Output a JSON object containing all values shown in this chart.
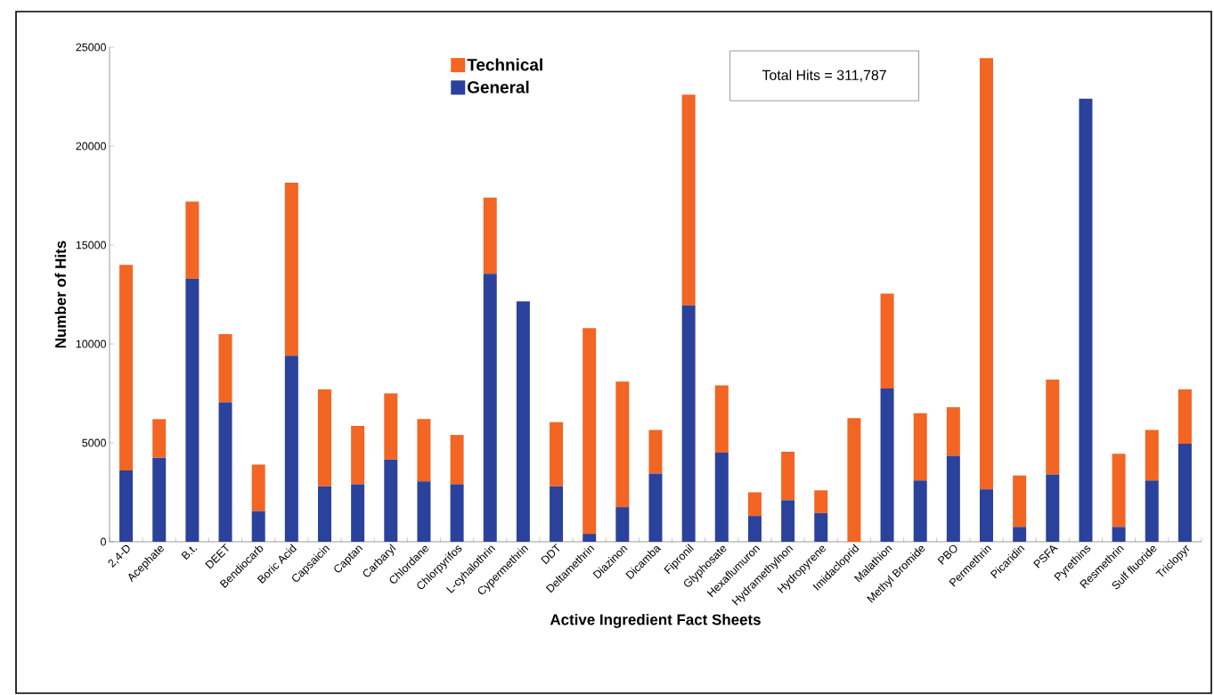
{
  "chart_data": {
    "type": "bar",
    "stacked": true,
    "xlabel": "Active Ingredient Fact Sheets",
    "ylabel": "Number of Hits",
    "categories": [
      "2,4-D",
      "Acephate",
      "B.t.",
      "DEET",
      "Bendiocarb",
      "Boric Acid",
      "Capsaicin",
      "Captan",
      "Carbaryl",
      "Chlordane",
      "Chlorpyrifos",
      "L-cyhalothrin",
      "Cypermethrin",
      "DDT",
      "Deltamethrin",
      "Diazinon",
      "Dicamba",
      "Fipronil",
      "Glyphosate",
      "Hexaflumuron",
      "Hydramethylnon",
      "Hydropyrene",
      "Imidacloprid",
      "Malathion",
      "Methyl Bromide",
      "PBO",
      "Permethrin",
      "Picaridin",
      "PSFA",
      "Pyrethins",
      "Resmethrin",
      "Sulf fluoride",
      "Triclopyr"
    ],
    "series": [
      {
        "name": "General",
        "color": "#2a429b",
        "values": [
          3600,
          4250,
          13300,
          7050,
          1550,
          9400,
          2800,
          2900,
          4150,
          3050,
          2900,
          13550,
          12150,
          2800,
          400,
          1750,
          3450,
          11950,
          4500,
          1300,
          2100,
          1450,
          0,
          7750,
          3100,
          4350,
          2650,
          750,
          3400,
          22400,
          750,
          3100,
          4950
        ]
      },
      {
        "name": "Technical",
        "color": "#f26522",
        "values": [
          10400,
          1950,
          3900,
          3450,
          2350,
          8750,
          4900,
          2950,
          3350,
          3150,
          2500,
          3850,
          0,
          3250,
          10400,
          6350,
          2200,
          10650,
          3400,
          1200,
          2450,
          1150,
          6250,
          4800,
          3400,
          2450,
          21800,
          2600,
          4800,
          0,
          3700,
          2550,
          2750
        ]
      }
    ],
    "ylim": [
      0,
      25000
    ],
    "yticks": [
      0,
      5000,
      10000,
      15000,
      20000,
      25000
    ],
    "legend": "top",
    "grid": false,
    "annotations": [
      "Total Hits = 311,787"
    ]
  }
}
